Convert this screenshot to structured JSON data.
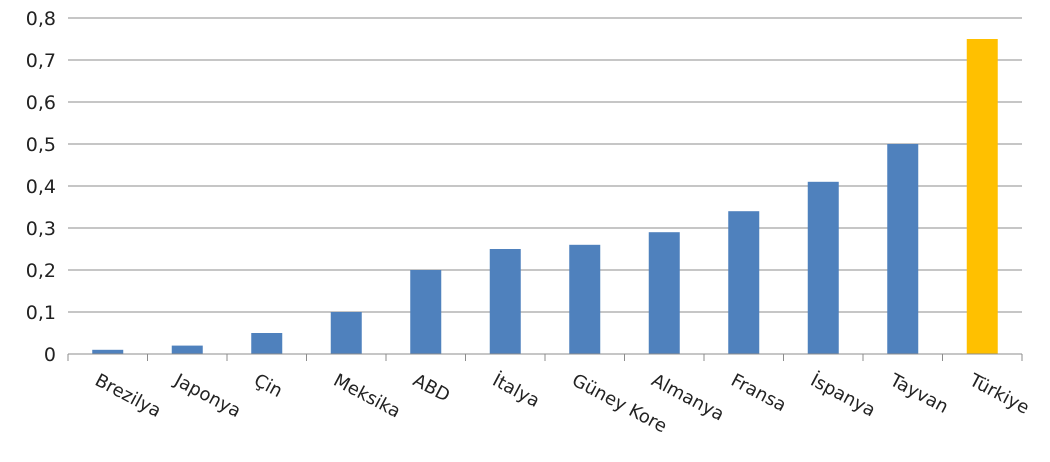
{
  "chart_data": {
    "type": "bar",
    "title": "",
    "xlabel": "",
    "ylabel": "",
    "categories": [
      "Brezilya",
      "Japonya",
      "Çin",
      "Meksika",
      "ABD",
      "İtalya",
      "Güney Kore",
      "Almanya",
      "Fransa",
      "İspanya",
      "Tayvan",
      "Türkiye"
    ],
    "values": [
      0.01,
      0.02,
      0.05,
      0.1,
      0.2,
      0.25,
      0.26,
      0.29,
      0.34,
      0.41,
      0.5,
      0.75
    ],
    "ylim": [
      0,
      0.8
    ],
    "yticks": [
      0,
      0.1,
      0.2,
      0.3,
      0.4,
      0.5,
      0.6,
      0.7,
      0.8
    ],
    "ytick_labels": [
      "0",
      "0,1",
      "0,2",
      "0,3",
      "0,4",
      "0,5",
      "0,6",
      "0,7",
      "0,8"
    ],
    "grid": true,
    "legend": "none",
    "colors": {
      "default_bar": "#4f81bd",
      "highlight_bar": "#ffc000",
      "highlight_category": "Türkiye"
    }
  }
}
